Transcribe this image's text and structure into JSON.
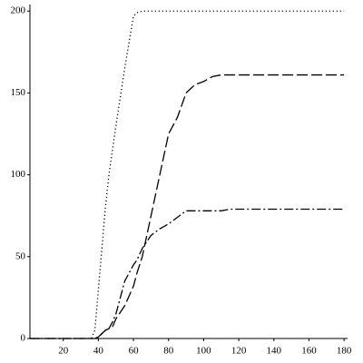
{
  "chart_data": {
    "type": "line",
    "x": [
      1,
      36,
      38,
      40,
      42,
      44,
      46,
      48,
      50,
      55,
      60,
      62,
      65,
      70,
      75,
      80,
      85,
      90,
      95,
      100,
      105,
      110,
      115,
      120,
      180
    ],
    "series": [
      {
        "color": "#000000",
        "dash": "dotted",
        "values": [
          0,
          0,
          5,
          30,
          55,
          80,
          100,
          115,
          130,
          165,
          197,
          199,
          200,
          200,
          200,
          200,
          200,
          200,
          200,
          200,
          200,
          200,
          200,
          200,
          200
        ]
      },
      {
        "color": "#000000",
        "dash": "dashed",
        "values": [
          0,
          0,
          0,
          0,
          3,
          5,
          6,
          7,
          12,
          20,
          32,
          40,
          50,
          75,
          100,
          125,
          135,
          150,
          155,
          157,
          160,
          161,
          161,
          161,
          161
        ]
      },
      {
        "color": "#000000",
        "dash": "dashdot",
        "values": [
          0,
          0,
          0,
          1,
          3,
          5,
          6,
          10,
          15,
          35,
          45,
          48,
          55,
          63,
          67,
          70,
          74,
          78,
          78,
          78,
          78,
          78,
          79,
          79,
          79
        ]
      }
    ],
    "xlim": [
      1,
      182
    ],
    "ylim": [
      0,
      204
    ],
    "xticks": [
      20,
      40,
      60,
      80,
      100,
      120,
      140,
      160,
      180
    ],
    "yticks": [
      0,
      50,
      100,
      150,
      200
    ]
  }
}
